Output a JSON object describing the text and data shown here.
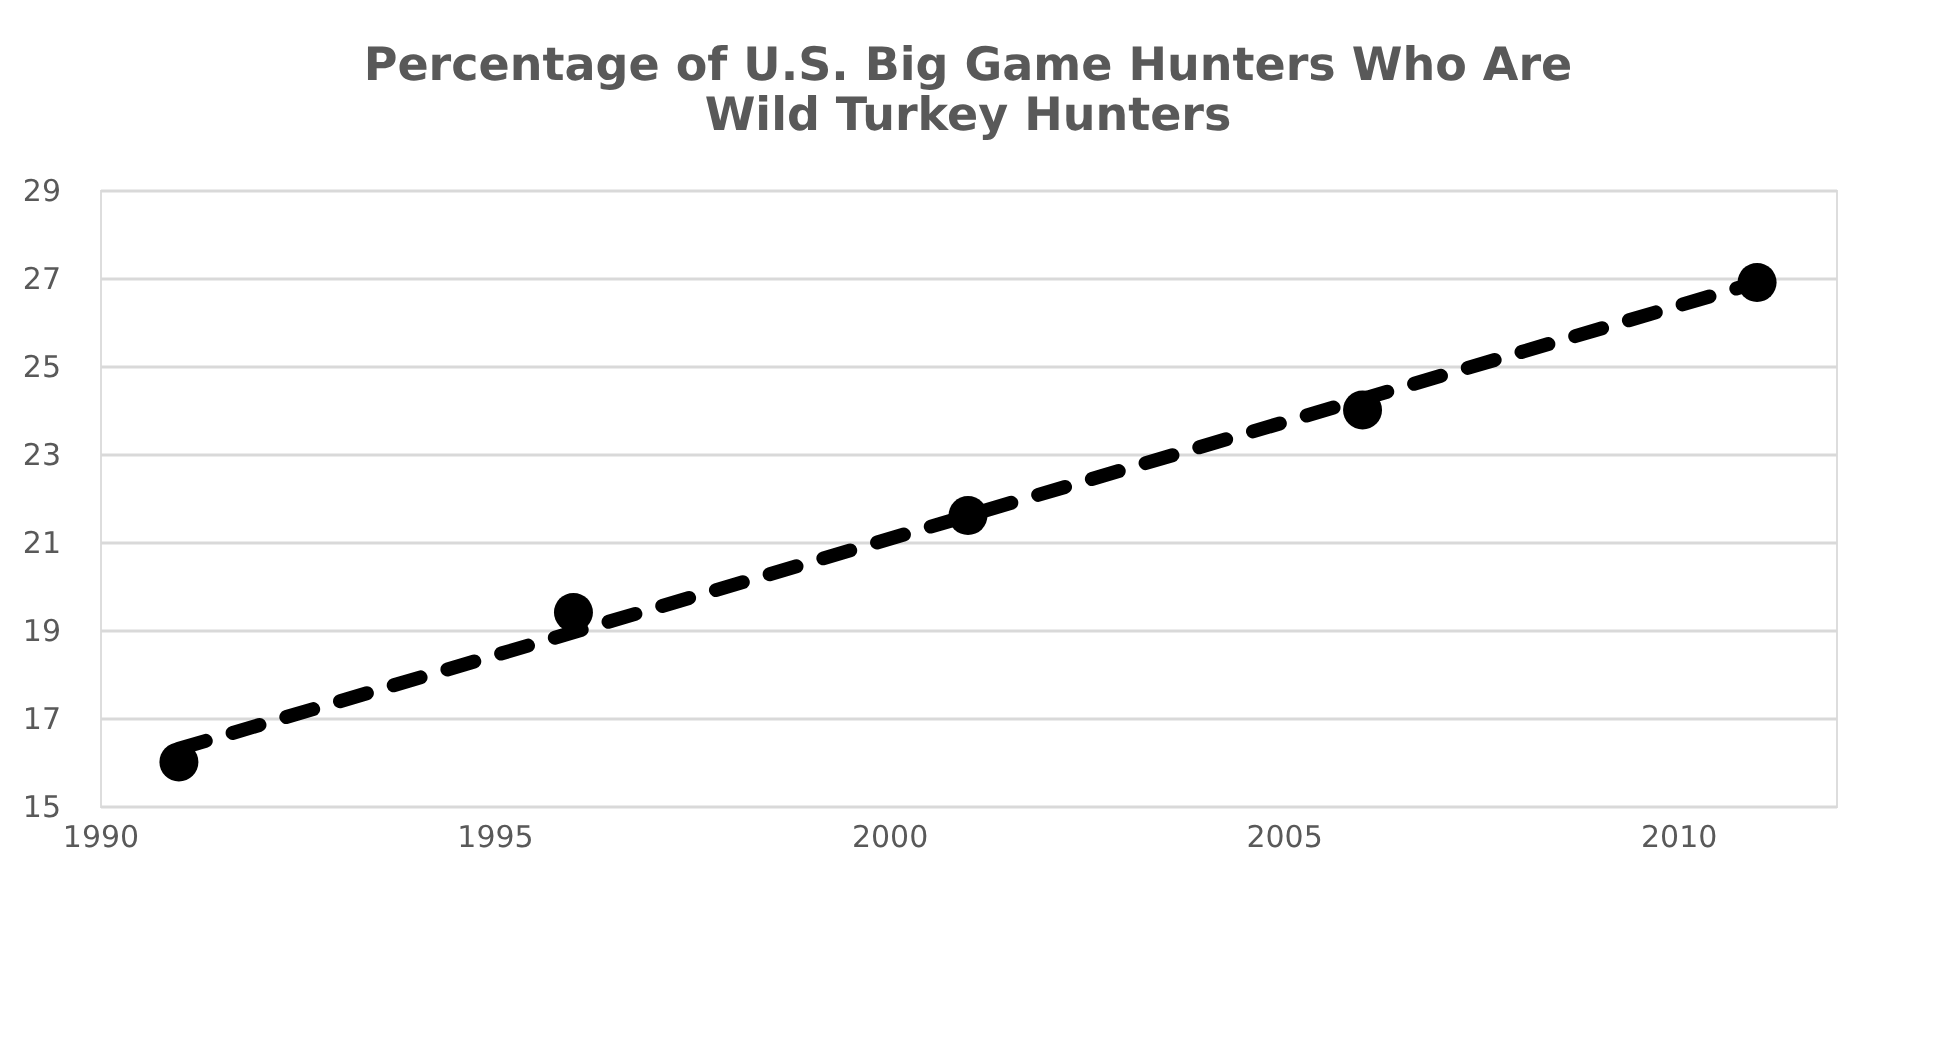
{
  "chart_data": {
    "type": "scatter",
    "title": [
      "Percentage of U.S. Big Game Hunters Who Are",
      "Wild Turkey Hunters"
    ],
    "x": [
      1991,
      1996,
      2001,
      2006,
      2011
    ],
    "series": [
      {
        "color": "#000000",
        "marker": "circle",
        "values": [
          16.0,
          19.4,
          21.6,
          24.0,
          26.9
        ]
      },
      {
        "type": "line",
        "color": "#000000",
        "line_style": "dashed",
        "x": [
          1991,
          2011
        ],
        "values": [
          16.3,
          26.9
        ]
      }
    ],
    "xlim": [
      1990,
      2012
    ],
    "xticks": [
      1990,
      1995,
      2000,
      2005,
      2010
    ],
    "ylim": [
      15,
      29
    ],
    "yticks": [
      15,
      17,
      19,
      21,
      23,
      25,
      27,
      29
    ],
    "grid": "y"
  }
}
